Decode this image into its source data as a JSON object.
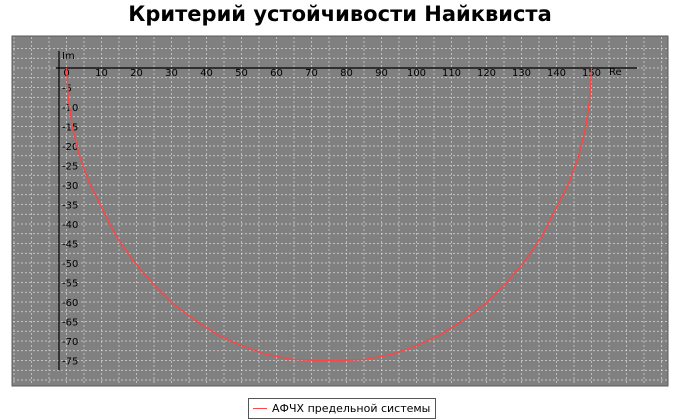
{
  "chart_data": {
    "type": "line",
    "title": "Критерий устойчивости Найквиста",
    "xlabel": "Re",
    "ylabel": "Im",
    "xlim": [
      -2,
      152
    ],
    "ylim": [
      -77,
      1
    ],
    "x_ticks": [
      0,
      10,
      20,
      30,
      40,
      50,
      60,
      70,
      80,
      90,
      100,
      110,
      120,
      130,
      140,
      150
    ],
    "y_ticks": [
      -5,
      -10,
      -15,
      -20,
      -25,
      -30,
      -35,
      -40,
      -45,
      -50,
      -55,
      -60,
      -65,
      -70,
      -75
    ],
    "x_tick_labels": [
      "0",
      "10",
      "20",
      "30",
      "40",
      "50",
      "60",
      "70",
      "80",
      "90",
      "100",
      "110",
      "120",
      "130",
      "140",
      "150"
    ],
    "y_tick_labels": [
      "-5",
      "-10",
      "-15",
      "-20",
      "-25",
      "-30",
      "-35",
      "-40",
      "-45",
      "-50",
      "-55",
      "-60",
      "-65",
      "-70",
      "-75"
    ],
    "grid": true,
    "legend_position": "bottom-center",
    "series": [
      {
        "name": "АФЧХ предельной системы",
        "color": "#ff4444",
        "x": [
          0,
          0.5,
          1.7,
          3.7,
          6.5,
          10.0,
          14.2,
          19.0,
          24.5,
          30.4,
          36.7,
          43.4,
          50.3,
          57.3,
          64.4,
          71.5,
          78.5,
          85.6,
          92.7,
          99.7,
          106.6,
          113.3,
          119.6,
          125.5,
          131.0,
          135.8,
          140.0,
          143.5,
          146.3,
          148.3,
          149.5,
          150.0
        ],
        "y": [
          0,
          -7.8,
          -15.4,
          -22.6,
          -29.4,
          -35.7,
          -43.1,
          -49.4,
          -55.2,
          -60.5,
          -64.7,
          -68.5,
          -71.3,
          -73.5,
          -74.7,
          -75.0,
          -75.0,
          -74.7,
          -73.5,
          -71.3,
          -68.5,
          -64.7,
          -60.5,
          -55.2,
          -49.4,
          -43.1,
          -35.7,
          -29.4,
          -22.6,
          -15.4,
          -7.8,
          0
        ]
      }
    ]
  }
}
